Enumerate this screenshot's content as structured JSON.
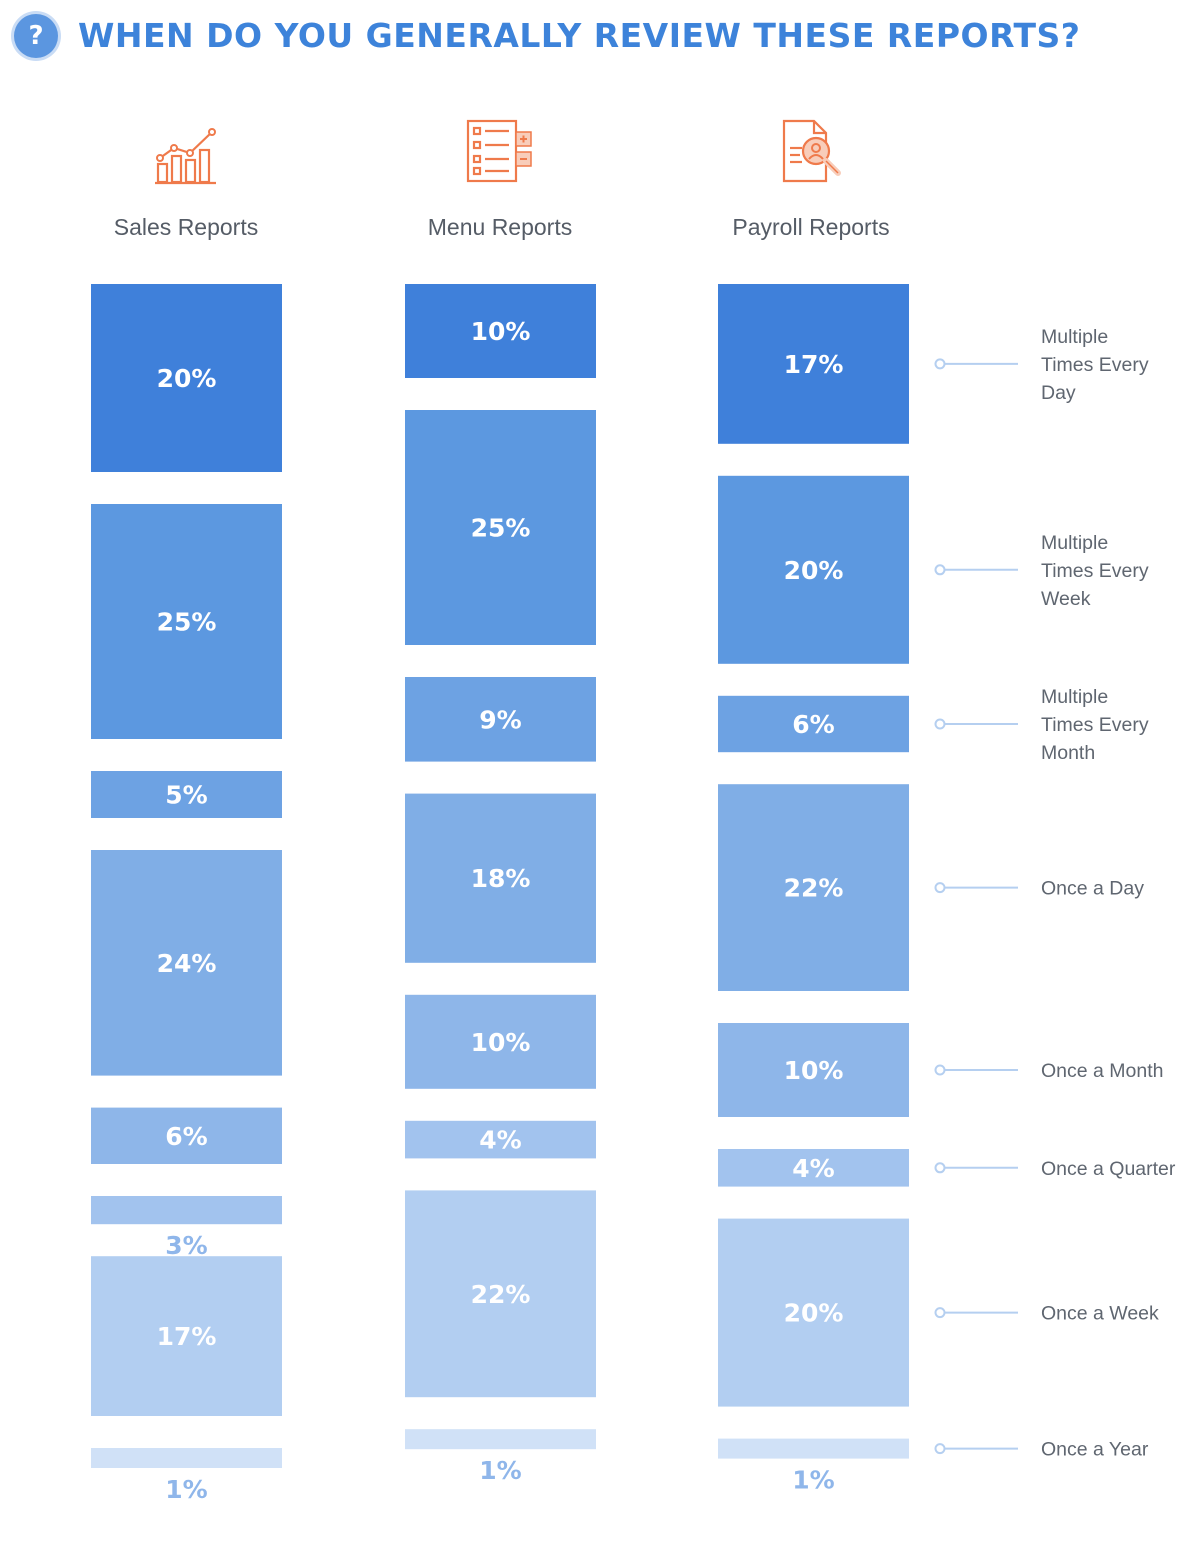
{
  "question_icon": "?",
  "title": "WHEN DO YOU GENERALLY REVIEW THESE REPORTS?",
  "icons": [
    "growth-chart-icon",
    "checklist-icon",
    "payroll-document-search-icon"
  ],
  "chart_data": {
    "type": "bar",
    "orientation": "stacked-vertical-segments",
    "categories": [
      "Sales Reports",
      "Menu Reports",
      "Payroll Reports"
    ],
    "series": [
      {
        "name": "Multiple Times Every Day",
        "values": [
          20,
          10,
          17
        ],
        "color": "#3F80DA"
      },
      {
        "name": "Multiple Times Every Week",
        "values": [
          25,
          25,
          20
        ],
        "color": "#5C98E0"
      },
      {
        "name": "Multiple Times Every Month",
        "values": [
          5,
          9,
          6
        ],
        "color": "#6DA2E3"
      },
      {
        "name": "Once a Day",
        "values": [
          24,
          18,
          22
        ],
        "color": "#80AEE6"
      },
      {
        "name": "Once a Month",
        "values": [
          6,
          10,
          10
        ],
        "color": "#8EB6E9"
      },
      {
        "name": "Once a Quarter",
        "values": [
          3,
          4,
          4
        ],
        "color": "#A2C3EE"
      },
      {
        "name": "Once a Week",
        "values": [
          17,
          22,
          20
        ],
        "color": "#B2CEF1"
      },
      {
        "name": "Once a Year",
        "values": [
          1,
          1,
          1
        ],
        "color": "#D0E1F7"
      }
    ],
    "value_suffix": "%",
    "legend_position": "right"
  },
  "colors": {
    "title": "#3D83DA",
    "legend_line": "#B5CFF0",
    "icon": "#EF7A4B"
  }
}
